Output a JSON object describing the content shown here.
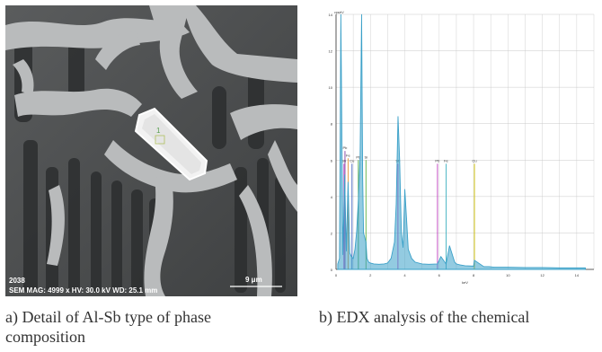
{
  "panel_a": {
    "sample_id": "2038",
    "info": "SEM MAG: 4999 x HV: 30.0 kV WD: 25.1 mm",
    "scale_label": "9 μm",
    "point_label": "1"
  },
  "panel_b": {
    "chart_data": {
      "type": "line",
      "title": "",
      "ylabel_unit": "cps/eV",
      "xlabel": "keV",
      "xlim": [
        0,
        15
      ],
      "ylim": [
        0,
        14
      ],
      "x_ticks": [
        "0",
        "2",
        "4",
        "6",
        "8",
        "10",
        "12",
        "14"
      ],
      "y_ticks": [
        "0",
        "2",
        "4",
        "6",
        "8",
        "10",
        "12",
        "14"
      ],
      "grid": true,
      "series": [
        {
          "x": [
            0.1,
            0.2,
            0.28,
            0.4,
            0.5,
            0.6,
            0.7,
            0.8,
            0.9,
            1.0,
            1.1,
            1.2,
            1.3,
            1.4,
            1.487,
            1.55,
            1.6,
            1.74,
            1.8,
            1.9,
            2.0,
            2.2,
            2.5,
            2.8,
            3.0,
            3.2,
            3.4,
            3.5,
            3.605,
            3.7,
            3.8,
            3.9,
            4.0,
            4.1,
            4.2,
            4.4,
            4.6,
            5.0,
            5.4,
            5.9,
            6.1,
            6.4,
            6.6,
            6.9,
            7.0,
            7.2,
            7.5,
            8.0,
            8.05,
            8.6,
            8.9,
            9.2,
            10,
            11,
            12,
            13,
            14,
            14.5
          ],
          "y": [
            0.3,
            0.6,
            14.0,
            0.8,
            5.2,
            1.0,
            4.8,
            0.9,
            0.7,
            0.6,
            1.1,
            2.1,
            3.8,
            6.2,
            14.0,
            5.0,
            2.0,
            1.5,
            0.6,
            0.4,
            0.35,
            0.3,
            0.28,
            0.3,
            0.35,
            0.6,
            1.5,
            3.6,
            8.4,
            6.0,
            2.0,
            1.2,
            4.4,
            2.8,
            1.1,
            0.6,
            0.4,
            0.3,
            0.28,
            0.3,
            0.7,
            0.3,
            1.3,
            0.4,
            0.3,
            0.25,
            0.2,
            0.18,
            0.5,
            0.15,
            0.15,
            0.12,
            0.12,
            0.1,
            0.1,
            0.08,
            0.08,
            0.08
          ]
        }
      ],
      "element_markers": [
        {
          "label": "Sb",
          "x": 0.46,
          "y": 5.8,
          "color": "#c040c0"
        },
        {
          "label": "Fe",
          "x": 0.7,
          "y": 6.1,
          "color": "#e09030"
        },
        {
          "label": "Cu",
          "x": 0.93,
          "y": 5.8,
          "color": "#4060c0"
        },
        {
          "label": "Pb",
          "x": 0.52,
          "y": 6.5,
          "color": "#8040a0"
        },
        {
          "label": "Pb",
          "x": 1.3,
          "y": 6.0,
          "color": "#40a040"
        },
        {
          "label": "Si",
          "x": 1.74,
          "y": 6.0,
          "color": "#60b040"
        },
        {
          "label": "Sb",
          "x": 3.6,
          "y": 5.8,
          "color": "#c040c0"
        },
        {
          "label": "Pb",
          "x": 5.9,
          "y": 5.8,
          "color": "#c040c0"
        },
        {
          "label": "Fe",
          "x": 6.4,
          "y": 5.8,
          "color": "#40b0c0"
        },
        {
          "label": "Cu",
          "x": 8.05,
          "y": 5.8,
          "color": "#d0c000"
        }
      ]
    }
  },
  "captions": {
    "a_line1": "a) Detail of Al-Sb type of phase",
    "a_line2": "composition",
    "b_line1": "b) EDX analysis of the chemical"
  },
  "colors": {
    "spectrum": "#3aa0c8",
    "grid": "#c8c8c8"
  }
}
